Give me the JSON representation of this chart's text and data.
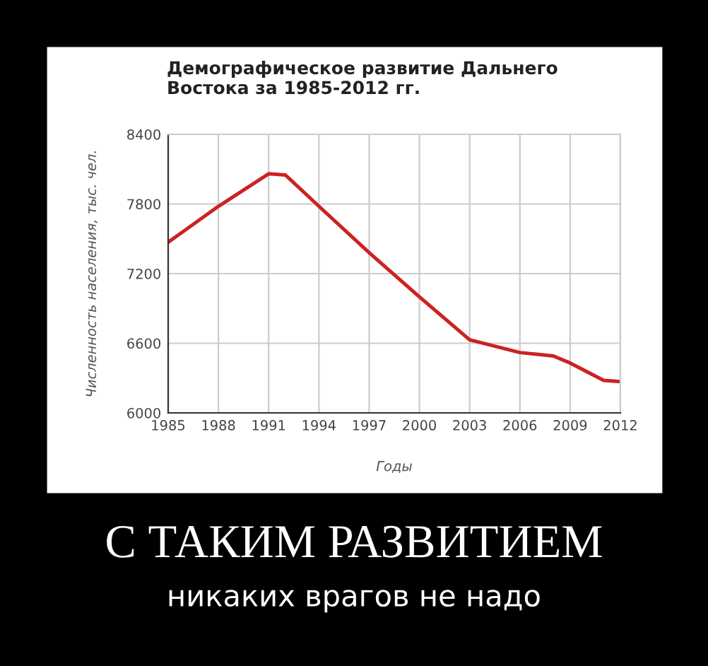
{
  "chart_data": {
    "type": "line",
    "title": "Демографическое развитие Дальнего\nВостока за 1985-2012 гг.",
    "xlabel": "Годы",
    "ylabel": "Численность населения, тыс. чел.",
    "x": [
      1985,
      1988,
      1991,
      1992,
      1994,
      1997,
      2000,
      2003,
      2006,
      2008,
      2009,
      2011,
      2012
    ],
    "series": [
      {
        "color": "#cc2222",
        "values": [
          7470,
          7780,
          8060,
          8050,
          7780,
          7380,
          7000,
          6630,
          6520,
          6490,
          6430,
          6280,
          6270
        ]
      }
    ],
    "xlim": [
      1985,
      2012
    ],
    "xticks": [
      1985,
      1988,
      1991,
      1994,
      1997,
      2000,
      2003,
      2006,
      2009,
      2012
    ],
    "ylim": [
      6000,
      8400
    ],
    "yticks": [
      6000,
      6600,
      7200,
      7800,
      8400
    ],
    "grid": true,
    "legend": false,
    "marker": "none",
    "line_style": "solid",
    "annotations": [
      "С ТАКИМ РАЗВИТИЕМ",
      "никаких врагов не надо"
    ]
  }
}
